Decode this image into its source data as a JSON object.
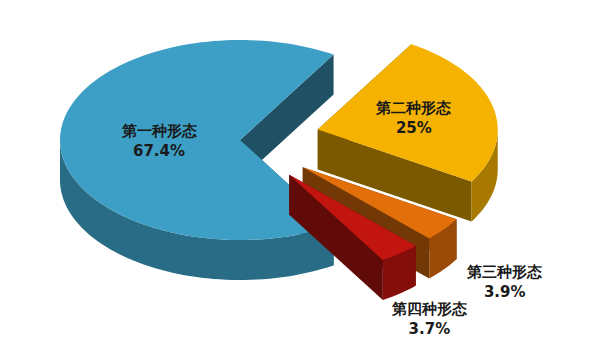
{
  "chart_data": {
    "type": "pie",
    "categories": [
      "第一种形态",
      "第二种形态",
      "第三种形态",
      "第四种形态"
    ],
    "values": [
      67.4,
      25,
      3.9,
      3.7
    ],
    "value_labels": [
      "67.4%",
      "25%",
      "3.9%",
      "3.7%"
    ],
    "colors": [
      "#3d9fc5",
      "#f5b200",
      "#e36f0b",
      "#c2150f"
    ],
    "data_labels": true
  }
}
